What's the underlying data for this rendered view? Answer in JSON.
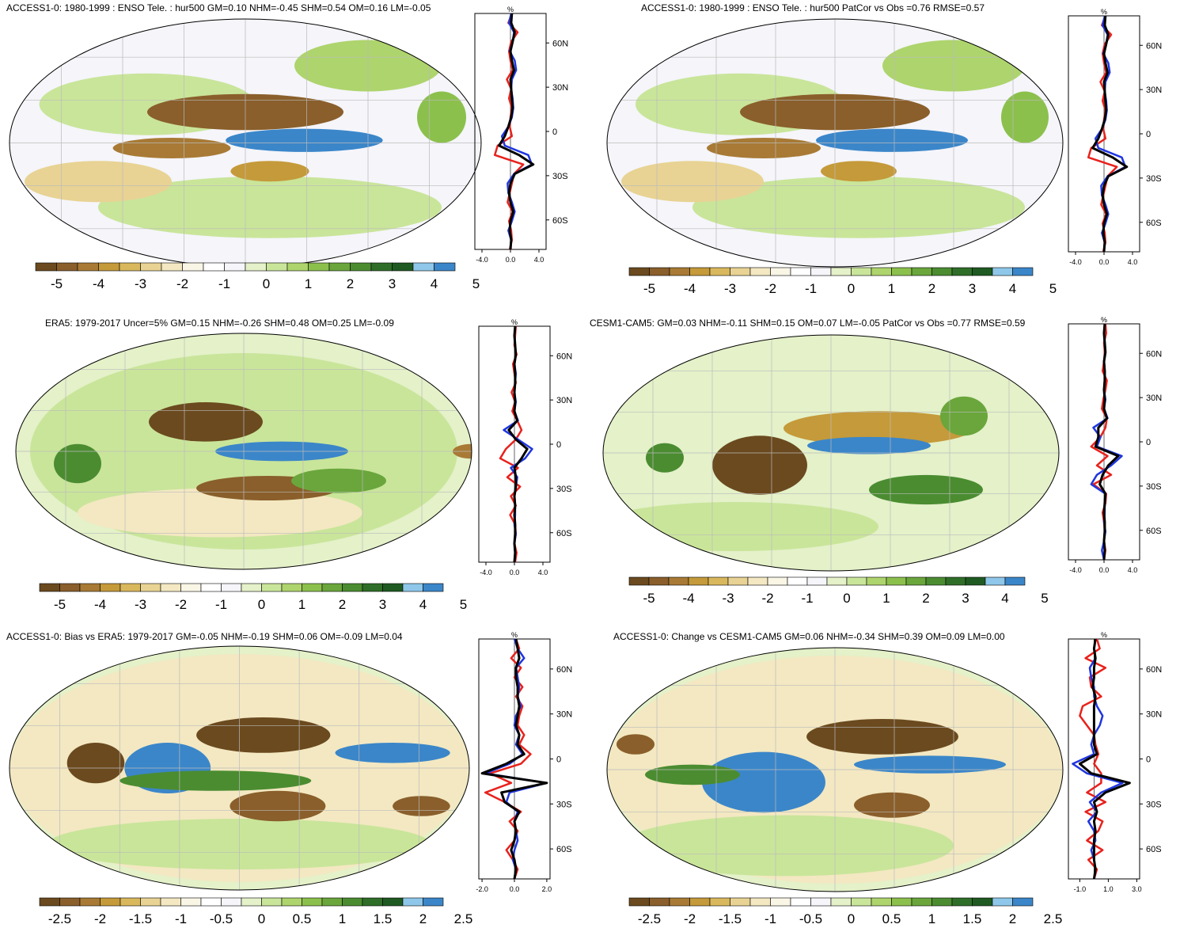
{
  "colorbars": {
    "scale5": {
      "colors": [
        "#6b4a1f",
        "#8a5f2b",
        "#a87a35",
        "#c59a3a",
        "#d9b85d",
        "#e8d394",
        "#f3e8c2",
        "#faf6e6",
        "#ffffff",
        "#f5f5fa",
        "#e4f1c9",
        "#c9e59a",
        "#aed46d",
        "#8cc04d",
        "#6aa63c",
        "#4b8c31",
        "#2f6e28",
        "#1f5a22",
        "#8ec7e9",
        "#3b86c9"
      ],
      "labels": [
        "-5",
        "-4",
        "-3",
        "-2",
        "-1",
        "0",
        "1",
        "2",
        "3",
        "4",
        "5"
      ]
    },
    "scale25": {
      "colors": [
        "#6b4a1f",
        "#8a5f2b",
        "#a87a35",
        "#c59a3a",
        "#d9b85d",
        "#e8d394",
        "#f3e8c2",
        "#faf6e6",
        "#ffffff",
        "#f5f5fa",
        "#e4f1c9",
        "#c9e59a",
        "#aed46d",
        "#8cc04d",
        "#6aa63c",
        "#4b8c31",
        "#2f6e28",
        "#1f5a22",
        "#8ec7e9",
        "#3b86c9"
      ],
      "labels": [
        "-2.5",
        "-2",
        "-1.5",
        "-1",
        "-0.5",
        "0",
        "0.5",
        "1",
        "1.5",
        "2",
        "2.5"
      ]
    }
  },
  "panels": [
    {
      "title": "ACCESS1-0: 1980-1999 : ENSO Tele. : hur500 GM=0.10 NHM=-0.45 SHM=0.54 OM=0.16 LM=-0.05",
      "profile": {
        "units": "%",
        "lat_labels": [
          "60N",
          "30N",
          "0",
          "30S",
          "60S"
        ],
        "x_labels": [
          "-4.0",
          "0.0",
          "4.0"
        ]
      }
    },
    {
      "title": "ACCESS1-0: 1980-1999 : ENSO Tele. : hur500 PatCor vs Obs =0.76 RMSE=0.57",
      "profile": {
        "units": "%",
        "lat_labels": [
          "60N",
          "30N",
          "0",
          "30S",
          "60S"
        ],
        "x_labels": [
          "-4.0",
          "0.0",
          "4.0"
        ]
      }
    },
    {
      "title": "ERA5: 1979-2017 Uncer=5% GM=0.15 NHM=-0.26 SHM=0.48 OM=0.25 LM=-0.09",
      "profile": {
        "units": "%",
        "lat_labels": [
          "60N",
          "30N",
          "0",
          "30S",
          "60S"
        ],
        "x_labels": [
          "-4.0",
          "0.0",
          "4.0"
        ]
      }
    },
    {
      "title": "CESM1-CAM5: GM=0.03 NHM=-0.11 SHM=0.15 OM=0.07 LM=-0.05 PatCor vs Obs =0.77 RMSE=0.59",
      "profile": {
        "units": "%",
        "lat_labels": [
          "60N",
          "30N",
          "0",
          "30S",
          "60S"
        ],
        "x_labels": [
          "-4.0",
          "0.0",
          "4.0"
        ]
      }
    },
    {
      "title": "ACCESS1-0: Bias vs ERA5: 1979-2017 GM=-0.05 NHM=-0.19 SHM=0.06 OM=-0.09 LM=0.04",
      "profile": {
        "units": "%",
        "lat_labels": [
          "60N",
          "30N",
          "0",
          "30S",
          "60S"
        ],
        "x_labels": [
          "-2.0",
          "0.0",
          "2.0"
        ]
      }
    },
    {
      "title": "ACCESS1-0: Change vs CESM1-CAM5 GM=0.06 NHM=-0.34 SHM=0.39 OM=0.09 LM=0.00",
      "profile": {
        "units": "%",
        "lat_labels": [
          "60N",
          "30N",
          "0",
          "30S",
          "60S"
        ],
        "x_labels": [
          "-1.0",
          "1.0",
          "3.0"
        ]
      }
    }
  ]
}
